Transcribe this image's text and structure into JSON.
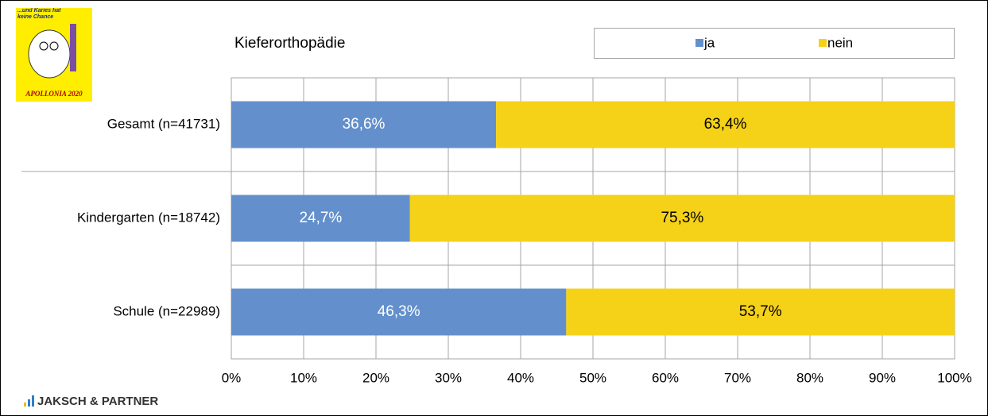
{
  "logo": {
    "slogan": "...und Karies hat keine Chance",
    "name": "APOLLONIA 2020",
    "company": "JAKSCH & PARTNER"
  },
  "chart_data": {
    "type": "stacked-bar-horizontal",
    "title": "Kieferorthopädie",
    "categories": [
      "Gesamt (n=41731)",
      "Kindergarten (n=18742)",
      "Schule (n=22989)"
    ],
    "series": [
      {
        "name": "ja",
        "color": "#6390cc",
        "values": [
          36.6,
          24.7,
          46.3
        ],
        "value_labels": [
          "36,6%",
          "24,7%",
          "46,3%"
        ]
      },
      {
        "name": "nein",
        "color": "#f5d218",
        "values": [
          63.4,
          75.3,
          53.7
        ],
        "value_labels": [
          "63,4%",
          "75,3%",
          "53,7%"
        ]
      }
    ],
    "xlim": [
      0,
      100
    ],
    "xticks": [
      {
        "value": 0,
        "label": "0%"
      },
      {
        "value": 10,
        "label": "10%"
      },
      {
        "value": 20,
        "label": "20%"
      },
      {
        "value": 30,
        "label": "30%"
      },
      {
        "value": 40,
        "label": "40%"
      },
      {
        "value": 50,
        "label": "50%"
      },
      {
        "value": 60,
        "label": "60%"
      },
      {
        "value": 70,
        "label": "70%"
      },
      {
        "value": 80,
        "label": "80%"
      },
      {
        "value": 90,
        "label": "90%"
      },
      {
        "value": 100,
        "label": "100%"
      }
    ],
    "grid": true,
    "legend": "top-right"
  }
}
